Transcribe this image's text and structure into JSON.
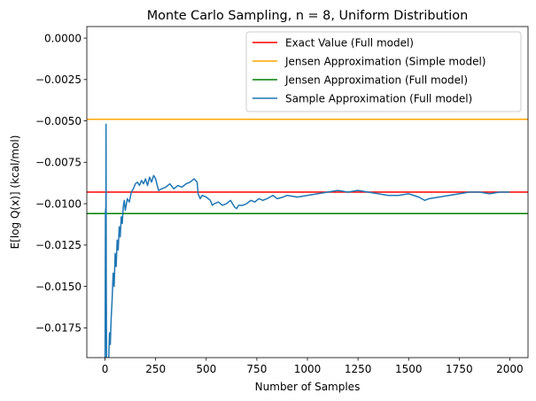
{
  "chart_data": {
    "type": "line",
    "title": "Monte Carlo Sampling, n = 8, Uniform Distribution",
    "xlabel": "Number of Samples",
    "ylabel": "E[log Q(x)] (kcal/mol)",
    "xlim": [
      -90,
      2090
    ],
    "ylim": [
      -0.0193,
      0.0007
    ],
    "x_ticks": [
      0,
      250,
      500,
      750,
      1000,
      1250,
      1500,
      1750,
      2000
    ],
    "x_tick_labels": [
      "0",
      "250",
      "500",
      "750",
      "1000",
      "1250",
      "1500",
      "1750",
      "2000"
    ],
    "y_ticks": [
      0.0,
      -0.0025,
      -0.005,
      -0.0075,
      -0.01,
      -0.0125,
      -0.015,
      -0.0175
    ],
    "y_tick_labels": [
      "0.0000",
      "−0.0025",
      "−0.0050",
      "−0.0075",
      "−0.0100",
      "−0.0125",
      "−0.0150",
      "−0.0175"
    ],
    "grid": false,
    "legend_position": "upper right",
    "hlines": [
      {
        "name": "Exact Value (Full model)",
        "y": -0.0093,
        "color": "#ff0000"
      },
      {
        "name": "Jensen Approximation (Simple model)",
        "y": -0.0049,
        "color": "#ffa500"
      },
      {
        "name": "Jensen Approximation (Full model)",
        "y": -0.0106,
        "color": "#008000"
      }
    ],
    "series": [
      {
        "name": "Sample Approximation (Full model)",
        "color": "#1f77b4",
        "points": [
          [
            0,
            -0.021
          ],
          [
            2,
            -0.0105
          ],
          [
            4,
            -0.0102
          ],
          [
            5,
            -0.0052
          ],
          [
            6,
            -0.0145
          ],
          [
            8,
            -0.02
          ],
          [
            10,
            -0.0215
          ],
          [
            14,
            -0.02
          ],
          [
            18,
            -0.0195
          ],
          [
            22,
            -0.0178
          ],
          [
            26,
            -0.0185
          ],
          [
            30,
            -0.017
          ],
          [
            35,
            -0.0158
          ],
          [
            40,
            -0.0142
          ],
          [
            45,
            -0.015
          ],
          [
            50,
            -0.013
          ],
          [
            55,
            -0.0138
          ],
          [
            60,
            -0.0122
          ],
          [
            65,
            -0.0128
          ],
          [
            70,
            -0.0114
          ],
          [
            75,
            -0.012
          ],
          [
            80,
            -0.0108
          ],
          [
            85,
            -0.0112
          ],
          [
            90,
            -0.0102
          ],
          [
            95,
            -0.0098
          ],
          [
            100,
            -0.0104
          ],
          [
            110,
            -0.0097
          ],
          [
            120,
            -0.0099
          ],
          [
            130,
            -0.0093
          ],
          [
            140,
            -0.0091
          ],
          [
            150,
            -0.0088
          ],
          [
            160,
            -0.0087
          ],
          [
            170,
            -0.0089
          ],
          [
            180,
            -0.0086
          ],
          [
            190,
            -0.0088
          ],
          [
            200,
            -0.0085
          ],
          [
            210,
            -0.0089
          ],
          [
            220,
            -0.0084
          ],
          [
            230,
            -0.0087
          ],
          [
            240,
            -0.0083
          ],
          [
            250,
            -0.0085
          ],
          [
            260,
            -0.009
          ],
          [
            265,
            -0.0092
          ],
          [
            280,
            -0.0091
          ],
          [
            300,
            -0.009
          ],
          [
            320,
            -0.0088
          ],
          [
            340,
            -0.0091
          ],
          [
            360,
            -0.0089
          ],
          [
            380,
            -0.009
          ],
          [
            400,
            -0.0088
          ],
          [
            420,
            -0.0087
          ],
          [
            440,
            -0.0085
          ],
          [
            455,
            -0.0087
          ],
          [
            460,
            -0.0094
          ],
          [
            470,
            -0.0097
          ],
          [
            480,
            -0.0095
          ],
          [
            500,
            -0.0096
          ],
          [
            520,
            -0.0098
          ],
          [
            530,
            -0.0101
          ],
          [
            540,
            -0.01
          ],
          [
            560,
            -0.0099
          ],
          [
            580,
            -0.0101
          ],
          [
            600,
            -0.01
          ],
          [
            620,
            -0.0098
          ],
          [
            640,
            -0.0102
          ],
          [
            650,
            -0.0103
          ],
          [
            660,
            -0.0101
          ],
          [
            680,
            -0.0101
          ],
          [
            700,
            -0.01
          ],
          [
            720,
            -0.0098
          ],
          [
            740,
            -0.0099
          ],
          [
            760,
            -0.0097
          ],
          [
            780,
            -0.0098
          ],
          [
            800,
            -0.0097
          ],
          [
            830,
            -0.0095
          ],
          [
            850,
            -0.0097
          ],
          [
            880,
            -0.0096
          ],
          [
            900,
            -0.0095
          ],
          [
            950,
            -0.0096
          ],
          [
            1000,
            -0.0095
          ],
          [
            1050,
            -0.0094
          ],
          [
            1100,
            -0.0093
          ],
          [
            1150,
            -0.0092
          ],
          [
            1200,
            -0.0093
          ],
          [
            1250,
            -0.0092
          ],
          [
            1300,
            -0.0093
          ],
          [
            1350,
            -0.0094
          ],
          [
            1400,
            -0.0095
          ],
          [
            1450,
            -0.0095
          ],
          [
            1500,
            -0.0094
          ],
          [
            1550,
            -0.0096
          ],
          [
            1580,
            -0.0098
          ],
          [
            1600,
            -0.0097
          ],
          [
            1650,
            -0.0096
          ],
          [
            1700,
            -0.0095
          ],
          [
            1750,
            -0.0094
          ],
          [
            1800,
            -0.0093
          ],
          [
            1850,
            -0.0093
          ],
          [
            1900,
            -0.0094
          ],
          [
            1950,
            -0.0093
          ],
          [
            2000,
            -0.0093
          ]
        ]
      }
    ]
  }
}
